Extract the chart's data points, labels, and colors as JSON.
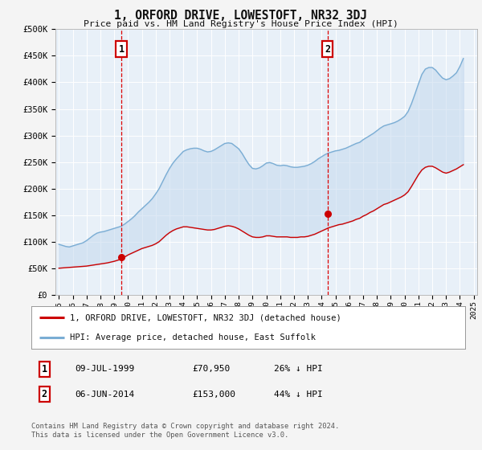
{
  "title": "1, ORFORD DRIVE, LOWESTOFT, NR32 3DJ",
  "subtitle": "Price paid vs. HM Land Registry's House Price Index (HPI)",
  "background_color": "#f4f4f4",
  "plot_bg_color": "#e8f0f8",
  "grid_color": "#ffffff",
  "line1_color": "#cc0000",
  "line2_color": "#7aadd4",
  "fill_color": "#c5d9ee",
  "ylim": [
    0,
    500000
  ],
  "yticks": [
    0,
    50000,
    100000,
    150000,
    200000,
    250000,
    300000,
    350000,
    400000,
    450000,
    500000
  ],
  "ytick_labels": [
    "£0",
    "£50K",
    "£100K",
    "£150K",
    "£200K",
    "£250K",
    "£300K",
    "£350K",
    "£400K",
    "£450K",
    "£500K"
  ],
  "annotation1": {
    "year": 1999.52,
    "price": 70950,
    "label": "1",
    "date": "09-JUL-1999",
    "amount": "£70,950",
    "pct": "26% ↓ HPI"
  },
  "annotation2": {
    "year": 2014.42,
    "price": 153000,
    "label": "2",
    "date": "06-JUN-2014",
    "amount": "£153,000",
    "pct": "44% ↓ HPI"
  },
  "legend_line1": "1, ORFORD DRIVE, LOWESTOFT, NR32 3DJ (detached house)",
  "legend_line2": "HPI: Average price, detached house, East Suffolk",
  "footer": "Contains HM Land Registry data © Crown copyright and database right 2024.\nThis data is licensed under the Open Government Licence v3.0.",
  "hpi_years": [
    1995.0,
    1995.25,
    1995.5,
    1995.75,
    1996.0,
    1996.25,
    1996.5,
    1996.75,
    1997.0,
    1997.25,
    1997.5,
    1997.75,
    1998.0,
    1998.25,
    1998.5,
    1998.75,
    1999.0,
    1999.25,
    1999.5,
    1999.75,
    2000.0,
    2000.25,
    2000.5,
    2000.75,
    2001.0,
    2001.25,
    2001.5,
    2001.75,
    2002.0,
    2002.25,
    2002.5,
    2002.75,
    2003.0,
    2003.25,
    2003.5,
    2003.75,
    2004.0,
    2004.25,
    2004.5,
    2004.75,
    2005.0,
    2005.25,
    2005.5,
    2005.75,
    2006.0,
    2006.25,
    2006.5,
    2006.75,
    2007.0,
    2007.25,
    2007.5,
    2007.75,
    2008.0,
    2008.25,
    2008.5,
    2008.75,
    2009.0,
    2009.25,
    2009.5,
    2009.75,
    2010.0,
    2010.25,
    2010.5,
    2010.75,
    2011.0,
    2011.25,
    2011.5,
    2011.75,
    2012.0,
    2012.25,
    2012.5,
    2012.75,
    2013.0,
    2013.25,
    2013.5,
    2013.75,
    2014.0,
    2014.25,
    2014.5,
    2014.75,
    2015.0,
    2015.25,
    2015.5,
    2015.75,
    2016.0,
    2016.25,
    2016.5,
    2016.75,
    2017.0,
    2017.25,
    2017.5,
    2017.75,
    2018.0,
    2018.25,
    2018.5,
    2018.75,
    2019.0,
    2019.25,
    2019.5,
    2019.75,
    2020.0,
    2020.25,
    2020.5,
    2020.75,
    2021.0,
    2021.25,
    2021.5,
    2021.75,
    2022.0,
    2022.25,
    2022.5,
    2022.75,
    2023.0,
    2023.25,
    2023.5,
    2023.75,
    2024.0,
    2024.25
  ],
  "hpi_values": [
    95000,
    93000,
    91000,
    90000,
    92000,
    94000,
    96000,
    98000,
    102000,
    107000,
    112000,
    116000,
    118000,
    119000,
    121000,
    123000,
    125000,
    127000,
    129000,
    133000,
    138000,
    143000,
    149000,
    156000,
    162000,
    168000,
    174000,
    181000,
    190000,
    200000,
    213000,
    226000,
    238000,
    248000,
    256000,
    263000,
    270000,
    273000,
    275000,
    276000,
    276000,
    274000,
    271000,
    269000,
    270000,
    273000,
    277000,
    281000,
    285000,
    286000,
    285000,
    280000,
    275000,
    266000,
    255000,
    245000,
    238000,
    237000,
    239000,
    243000,
    248000,
    249000,
    247000,
    244000,
    243000,
    244000,
    243000,
    241000,
    240000,
    240000,
    241000,
    242000,
    244000,
    247000,
    251000,
    256000,
    260000,
    264000,
    267000,
    269000,
    271000,
    272000,
    274000,
    276000,
    279000,
    282000,
    285000,
    287000,
    292000,
    296000,
    300000,
    304000,
    309000,
    314000,
    318000,
    320000,
    322000,
    324000,
    327000,
    331000,
    336000,
    345000,
    360000,
    378000,
    397000,
    415000,
    425000,
    428000,
    428000,
    423000,
    415000,
    408000,
    405000,
    407000,
    412000,
    418000,
    430000,
    445000
  ],
  "price_years": [
    1995.0,
    1995.25,
    1995.5,
    1995.75,
    1996.0,
    1996.25,
    1996.5,
    1996.75,
    1997.0,
    1997.25,
    1997.5,
    1997.75,
    1998.0,
    1998.25,
    1998.5,
    1998.75,
    1999.0,
    1999.25,
    1999.5,
    1999.75,
    2000.0,
    2000.25,
    2000.5,
    2000.75,
    2001.0,
    2001.25,
    2001.5,
    2001.75,
    2002.0,
    2002.25,
    2002.5,
    2002.75,
    2003.0,
    2003.25,
    2003.5,
    2003.75,
    2004.0,
    2004.25,
    2004.5,
    2004.75,
    2005.0,
    2005.25,
    2005.5,
    2005.75,
    2006.0,
    2006.25,
    2006.5,
    2006.75,
    2007.0,
    2007.25,
    2007.5,
    2007.75,
    2008.0,
    2008.25,
    2008.5,
    2008.75,
    2009.0,
    2009.25,
    2009.5,
    2009.75,
    2010.0,
    2010.25,
    2010.5,
    2010.75,
    2011.0,
    2011.25,
    2011.5,
    2011.75,
    2012.0,
    2012.25,
    2012.5,
    2012.75,
    2013.0,
    2013.25,
    2013.5,
    2013.75,
    2014.0,
    2014.25,
    2014.5,
    2014.75,
    2015.0,
    2015.25,
    2015.5,
    2015.75,
    2016.0,
    2016.25,
    2016.5,
    2016.75,
    2017.0,
    2017.25,
    2017.5,
    2017.75,
    2018.0,
    2018.25,
    2018.5,
    2018.75,
    2019.0,
    2019.25,
    2019.5,
    2019.75,
    2020.0,
    2020.25,
    2020.5,
    2020.75,
    2021.0,
    2021.25,
    2021.5,
    2021.75,
    2022.0,
    2022.25,
    2022.5,
    2022.75,
    2023.0,
    2023.25,
    2023.5,
    2023.75,
    2024.0,
    2024.25
  ],
  "price_values": [
    50000,
    50500,
    51000,
    51500,
    52000,
    52500,
    53000,
    53500,
    54000,
    55000,
    56000,
    57000,
    58000,
    59000,
    60000,
    61500,
    63000,
    65000,
    67000,
    70950,
    75000,
    78000,
    81000,
    84000,
    87000,
    89000,
    91000,
    93000,
    96000,
    100000,
    106000,
    112000,
    117000,
    121000,
    124000,
    126000,
    128000,
    128000,
    127000,
    126000,
    125000,
    124000,
    123000,
    122000,
    122000,
    123000,
    125000,
    127000,
    129000,
    130000,
    129000,
    127000,
    124000,
    120000,
    116000,
    112000,
    109000,
    108000,
    108000,
    109000,
    111000,
    111000,
    110000,
    109000,
    109000,
    109000,
    109000,
    108000,
    108000,
    108000,
    109000,
    109000,
    110000,
    112000,
    114000,
    117000,
    120000,
    123000,
    126000,
    128000,
    130000,
    132000,
    133000,
    135000,
    137000,
    139000,
    142000,
    144000,
    148000,
    151000,
    155000,
    158000,
    162000,
    166000,
    170000,
    172000,
    175000,
    178000,
    181000,
    184000,
    188000,
    194000,
    204000,
    215000,
    226000,
    235000,
    240000,
    242000,
    242000,
    239000,
    235000,
    231000,
    229000,
    231000,
    234000,
    237000,
    241000,
    245000
  ]
}
